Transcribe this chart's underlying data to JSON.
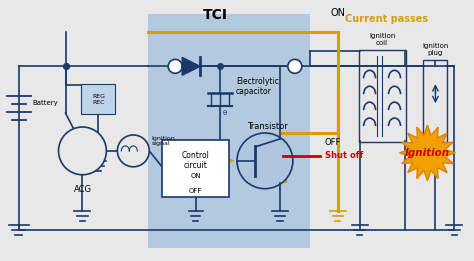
{
  "title": "TCI",
  "bg_color": "#e8e8e8",
  "tci_box_color": "#aec6e0",
  "wire_color": "#1a3a6b",
  "yellow_color": "#d4a000",
  "red_color": "#cc0000",
  "ignition_bg": "#f0a000",
  "annotations": {
    "title": "TCI",
    "on_label": "ON",
    "current_passes": "Current passes",
    "battery": "Battery",
    "reg_rec": "REG\nREC",
    "acg": "ACG",
    "ignition_signal": "Ignition\nsignal",
    "electrolytic_cap": "Electrolytic\ncapacitor",
    "transistor": "Transistor",
    "control_circuit": "Control\ncircuit",
    "on_label2": "ON",
    "off_label2": "OFF",
    "off_label": "OFF",
    "shut_off": "Shut off",
    "ignition_coil": "Ignition\ncoil",
    "ignition_plug": "Ignition\nplug",
    "ignition": "Ignition"
  }
}
